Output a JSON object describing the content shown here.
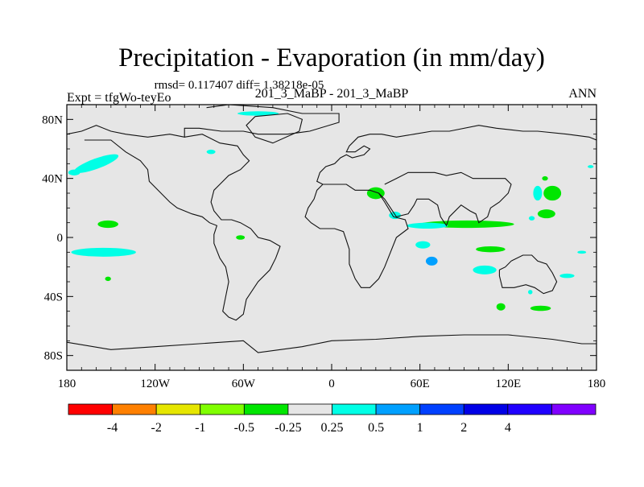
{
  "chart_data": {
    "type": "heatmap",
    "title": "Precipitation - Evaporation (in mm/day)",
    "stats_line": "rmsd= 0.117407  diff= 1.38218e-05",
    "left_label": "Expt = tfgWo-teyEo",
    "center_label": "201_3_MaBP - 201_3_MaBP",
    "right_label": "ANN",
    "x_range": [
      -180,
      180
    ],
    "y_range": [
      -90,
      90
    ],
    "x_ticks": [
      {
        "value": -180,
        "label": "180"
      },
      {
        "value": -120,
        "label": "120W"
      },
      {
        "value": -60,
        "label": "60W"
      },
      {
        "value": 0,
        "label": "0"
      },
      {
        "value": 60,
        "label": "60E"
      },
      {
        "value": 120,
        "label": "120E"
      },
      {
        "value": 180,
        "label": "180"
      }
    ],
    "y_ticks": [
      {
        "value": 80,
        "label": "80N"
      },
      {
        "value": 40,
        "label": "40N"
      },
      {
        "value": 0,
        "label": "0"
      },
      {
        "value": -40,
        "label": "40S"
      },
      {
        "value": -80,
        "label": "80S"
      }
    ],
    "background_color": "#e6e6e6",
    "colorbar": {
      "colors": [
        "#ff0000",
        "#ff8000",
        "#e6e600",
        "#80ff00",
        "#00e600",
        "#e6e6e6",
        "#00ffe6",
        "#00a0ff",
        "#0040ff",
        "#0000e6",
        "#2000ff",
        "#8000ff"
      ],
      "labels": [
        "-4",
        "-2",
        "-1",
        "-0.5",
        "-0.25",
        "0.25",
        "0.5",
        "1",
        "2",
        "4"
      ]
    },
    "coastlines": [
      [
        [
          -85,
          88
        ],
        [
          -70,
          90
        ],
        [
          -40,
          88
        ],
        [
          -20,
          84
        ],
        [
          5,
          84
        ],
        [
          5,
          78
        ],
        [
          -15,
          72
        ],
        [
          -30,
          70
        ],
        [
          -50,
          70
        ],
        [
          -60,
          72
        ],
        [
          -75,
          72
        ],
        [
          -90,
          74
        ],
        [
          -100,
          74
        ],
        [
          -100,
          68
        ],
        [
          -110,
          70
        ],
        [
          -125,
          68
        ],
        [
          -140,
          70
        ],
        [
          -150,
          72
        ],
        [
          -160,
          76
        ],
        [
          -170,
          72
        ],
        [
          -180,
          70
        ]
      ],
      [
        [
          -168,
          66
        ],
        [
          -150,
          66
        ],
        [
          -140,
          58
        ],
        [
          -130,
          52
        ],
        [
          -125,
          46
        ],
        [
          -124,
          38
        ],
        [
          -118,
          32
        ],
        [
          -110,
          24
        ],
        [
          -105,
          20
        ],
        [
          -95,
          16
        ],
        [
          -88,
          14
        ],
        [
          -83,
          10
        ],
        [
          -78,
          8
        ],
        [
          -80,
          2
        ],
        [
          -80,
          -4
        ],
        [
          -76,
          -14
        ],
        [
          -72,
          -20
        ],
        [
          -70,
          -30
        ],
        [
          -72,
          -40
        ],
        [
          -74,
          -50
        ],
        [
          -70,
          -54
        ],
        [
          -65,
          -56
        ],
        [
          -60,
          -52
        ],
        [
          -58,
          -42
        ],
        [
          -50,
          -30
        ],
        [
          -42,
          -22
        ],
        [
          -38,
          -14
        ],
        [
          -35,
          -6
        ],
        [
          -42,
          -2
        ],
        [
          -50,
          0
        ],
        [
          -55,
          6
        ],
        [
          -62,
          10
        ],
        [
          -68,
          12
        ],
        [
          -75,
          12
        ],
        [
          -80,
          18
        ],
        [
          -82,
          24
        ],
        [
          -80,
          32
        ],
        [
          -76,
          36
        ],
        [
          -70,
          42
        ],
        [
          -62,
          46
        ],
        [
          -56,
          52
        ],
        [
          -60,
          56
        ],
        [
          -64,
          62
        ],
        [
          -76,
          64
        ],
        [
          -88,
          70
        ],
        [
          -100,
          68
        ]
      ],
      [
        [
          2,
          50
        ],
        [
          -4,
          48
        ],
        [
          -8,
          44
        ],
        [
          -10,
          38
        ],
        [
          -6,
          36
        ],
        [
          -2,
          36
        ],
        [
          10,
          36
        ],
        [
          16,
          32
        ],
        [
          26,
          32
        ],
        [
          32,
          30
        ],
        [
          36,
          24
        ],
        [
          42,
          14
        ],
        [
          50,
          12
        ],
        [
          52,
          6
        ],
        [
          44,
          0
        ],
        [
          40,
          -10
        ],
        [
          36,
          -20
        ],
        [
          32,
          -28
        ],
        [
          26,
          -34
        ],
        [
          20,
          -34
        ],
        [
          16,
          -28
        ],
        [
          12,
          -18
        ],
        [
          12,
          -8
        ],
        [
          10,
          -2
        ],
        [
          8,
          4
        ],
        [
          2,
          6
        ],
        [
          -8,
          6
        ],
        [
          -14,
          10
        ],
        [
          -18,
          14
        ],
        [
          -16,
          20
        ],
        [
          -12,
          26
        ],
        [
          -10,
          32
        ],
        [
          -6,
          36
        ]
      ],
      [
        [
          2,
          50
        ],
        [
          6,
          54
        ],
        [
          10,
          56
        ],
        [
          14,
          54
        ],
        [
          22,
          56
        ],
        [
          26,
          60
        ],
        [
          22,
          62
        ],
        [
          16,
          58
        ],
        [
          10,
          58
        ],
        [
          12,
          62
        ],
        [
          18,
          68
        ],
        [
          26,
          70
        ],
        [
          34,
          70
        ],
        [
          44,
          68
        ],
        [
          56,
          70
        ],
        [
          68,
          72
        ],
        [
          80,
          72
        ],
        [
          100,
          76
        ],
        [
          112,
          74
        ],
        [
          130,
          72
        ],
        [
          140,
          72
        ],
        [
          160,
          70
        ],
        [
          175,
          68
        ],
        [
          180,
          66
        ]
      ],
      [
        [
          36,
          36
        ],
        [
          44,
          40
        ],
        [
          52,
          44
        ],
        [
          60,
          44
        ],
        [
          70,
          44
        ],
        [
          78,
          42
        ],
        [
          88,
          44
        ],
        [
          96,
          40
        ],
        [
          106,
          40
        ],
        [
          118,
          40
        ],
        [
          122,
          36
        ],
        [
          120,
          30
        ],
        [
          114,
          24
        ],
        [
          108,
          20
        ],
        [
          106,
          14
        ],
        [
          100,
          10
        ],
        [
          98,
          16
        ],
        [
          94,
          18
        ],
        [
          88,
          22
        ],
        [
          80,
          14
        ],
        [
          78,
          8
        ],
        [
          74,
          14
        ],
        [
          72,
          22
        ],
        [
          66,
          26
        ],
        [
          58,
          26
        ],
        [
          56,
          22
        ],
        [
          52,
          16
        ],
        [
          44,
          14
        ],
        [
          40,
          20
        ],
        [
          36,
          26
        ],
        [
          32,
          30
        ]
      ],
      [
        [
          114,
          -22
        ],
        [
          118,
          -20
        ],
        [
          122,
          -16
        ],
        [
          130,
          -12
        ],
        [
          136,
          -12
        ],
        [
          140,
          -16
        ],
        [
          146,
          -18
        ],
        [
          150,
          -24
        ],
        [
          153,
          -30
        ],
        [
          150,
          -36
        ],
        [
          144,
          -38
        ],
        [
          138,
          -34
        ],
        [
          132,
          -32
        ],
        [
          124,
          -34
        ],
        [
          116,
          -34
        ],
        [
          114,
          -26
        ],
        [
          114,
          -22
        ]
      ],
      [
        [
          -52,
          82
        ],
        [
          -30,
          84
        ],
        [
          -20,
          80
        ],
        [
          -22,
          72
        ],
        [
          -40,
          64
        ],
        [
          -52,
          68
        ],
        [
          -58,
          76
        ],
        [
          -52,
          82
        ]
      ],
      [
        [
          -180,
          -71
        ],
        [
          -150,
          -76
        ],
        [
          -120,
          -74
        ],
        [
          -90,
          -72
        ],
        [
          -60,
          -70
        ],
        [
          -50,
          -78
        ],
        [
          -20,
          -74
        ],
        [
          0,
          -70
        ],
        [
          30,
          -69
        ],
        [
          60,
          -67
        ],
        [
          90,
          -66
        ],
        [
          120,
          -66
        ],
        [
          150,
          -69
        ],
        [
          170,
          -72
        ],
        [
          180,
          -72
        ]
      ]
    ],
    "anomaly_patches": [
      {
        "cx": -160,
        "cy": 50,
        "rx": 16,
        "ry": 3.5,
        "rot": -20,
        "color": "#00ffe6"
      },
      {
        "cx": -175,
        "cy": 44,
        "rx": 4,
        "ry": 2,
        "rot": 0,
        "color": "#00ffe6"
      },
      {
        "cx": -50,
        "cy": 84,
        "rx": 14,
        "ry": 1.5,
        "rot": 0,
        "color": "#00ffe6"
      },
      {
        "cx": -82,
        "cy": 58,
        "rx": 3,
        "ry": 1.5,
        "rot": 0,
        "color": "#00ffe6"
      },
      {
        "cx": -152,
        "cy": 9,
        "rx": 7,
        "ry": 2.5,
        "rot": 0,
        "color": "#00e600"
      },
      {
        "cx": -155,
        "cy": -10,
        "rx": 22,
        "ry": 3,
        "rot": 0,
        "color": "#00ffe6"
      },
      {
        "cx": -152,
        "cy": -28,
        "rx": 2,
        "ry": 1.5,
        "rot": 0,
        "color": "#00e600"
      },
      {
        "cx": -62,
        "cy": 0,
        "rx": 3,
        "ry": 1.5,
        "rot": 0,
        "color": "#00e600"
      },
      {
        "cx": 30,
        "cy": 30,
        "rx": 6,
        "ry": 4,
        "rot": 0,
        "color": "#00e600"
      },
      {
        "cx": 43,
        "cy": 15,
        "rx": 4,
        "ry": 2.5,
        "rot": 0,
        "color": "#00ffe6"
      },
      {
        "cx": 92,
        "cy": 9,
        "rx": 32,
        "ry": 2.5,
        "rot": 0,
        "color": "#00e600"
      },
      {
        "cx": 65,
        "cy": 8,
        "rx": 14,
        "ry": 2,
        "rot": 0,
        "color": "#00ffe6"
      },
      {
        "cx": 62,
        "cy": -5,
        "rx": 5,
        "ry": 2.5,
        "rot": 0,
        "color": "#00ffe6"
      },
      {
        "cx": 68,
        "cy": -16,
        "rx": 4,
        "ry": 3,
        "rot": 0,
        "color": "#00a0ff"
      },
      {
        "cx": 108,
        "cy": -8,
        "rx": 10,
        "ry": 2,
        "rot": 0,
        "color": "#00e600"
      },
      {
        "cx": 104,
        "cy": -22,
        "rx": 8,
        "ry": 3,
        "rot": 0,
        "color": "#00ffe6"
      },
      {
        "cx": 150,
        "cy": 30,
        "rx": 6,
        "ry": 5,
        "rot": 0,
        "color": "#00e600"
      },
      {
        "cx": 140,
        "cy": 30,
        "rx": 3,
        "ry": 5,
        "rot": 0,
        "color": "#00ffe6"
      },
      {
        "cx": 146,
        "cy": 16,
        "rx": 6,
        "ry": 3,
        "rot": 0,
        "color": "#00e600"
      },
      {
        "cx": 145,
        "cy": 40,
        "rx": 2,
        "ry": 1.5,
        "rot": 0,
        "color": "#00e600"
      },
      {
        "cx": 136,
        "cy": 13,
        "rx": 2,
        "ry": 1.5,
        "rot": 0,
        "color": "#00ffe6"
      },
      {
        "cx": 160,
        "cy": -26,
        "rx": 5,
        "ry": 1.5,
        "rot": 0,
        "color": "#00ffe6"
      },
      {
        "cx": 170,
        "cy": -10,
        "rx": 3,
        "ry": 1,
        "rot": 0,
        "color": "#00ffe6"
      },
      {
        "cx": 115,
        "cy": -47,
        "rx": 3,
        "ry": 2.5,
        "rot": 0,
        "color": "#00e600"
      },
      {
        "cx": 142,
        "cy": -48,
        "rx": 7,
        "ry": 1.8,
        "rot": 0,
        "color": "#00e600"
      },
      {
        "cx": 135,
        "cy": -37,
        "rx": 1.5,
        "ry": 1.5,
        "rot": 0,
        "color": "#00ffe6"
      },
      {
        "cx": 176,
        "cy": 48,
        "rx": 2,
        "ry": 1,
        "rot": 0,
        "color": "#00ffe6"
      }
    ]
  }
}
